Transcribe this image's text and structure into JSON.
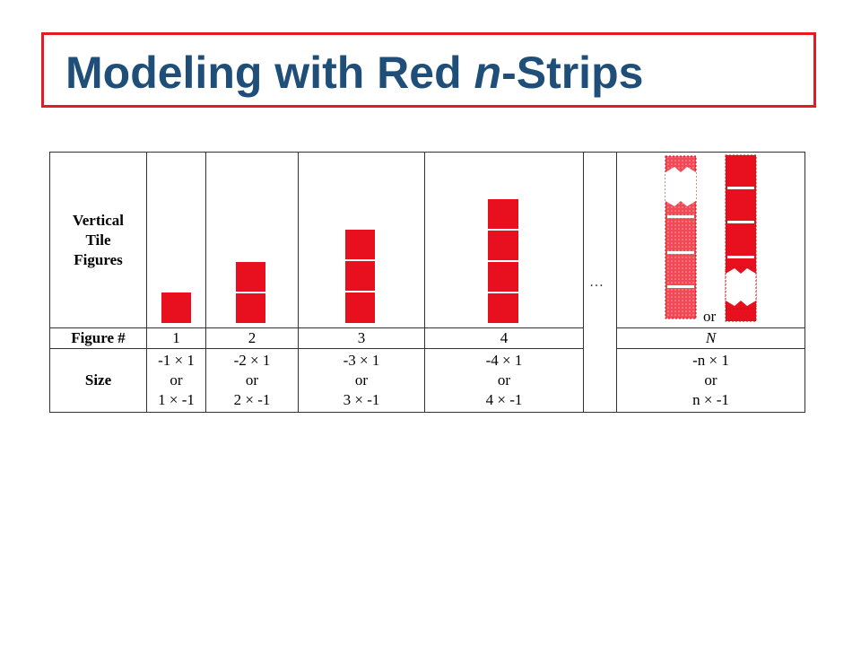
{
  "slide": {
    "title_prefix": "Modeling with Red ",
    "title_italic": "n",
    "title_suffix": "-Strips"
  },
  "table": {
    "row_headers": {
      "figures_line1": "Vertical",
      "figures_line2": "Tile",
      "figures_line3": "Figures",
      "figure_number": "Figure #",
      "size": "Size"
    },
    "ellipsis": "…",
    "strip_or": "or",
    "columns": [
      {
        "figure": "1",
        "size_line1": "-1 × 1",
        "size_line2": "or",
        "size_line3": "1 × -1"
      },
      {
        "figure": "2",
        "size_line1": "-2 × 1",
        "size_line2": "or",
        "size_line3": "2 × -1"
      },
      {
        "figure": "3",
        "size_line1": "-3 × 1",
        "size_line2": "or",
        "size_line3": "3 × -1"
      },
      {
        "figure": "4",
        "size_line1": "-4 × 1",
        "size_line2": "or",
        "size_line3": "4 × -1"
      },
      {
        "figure": "N",
        "size_line1": "-n × 1",
        "size_line2": "or",
        "size_line3": "n × -1"
      }
    ]
  },
  "colors": {
    "tile_red": "#e8101f",
    "title_blue": "#1f4e79",
    "border_red": "#e31b23"
  }
}
